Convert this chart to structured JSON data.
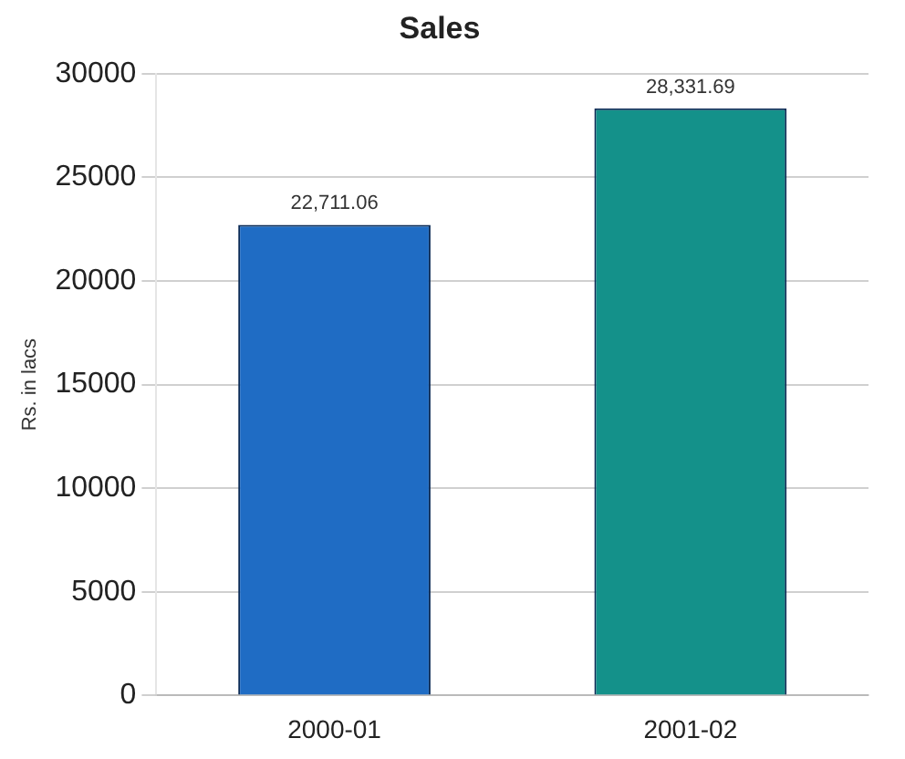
{
  "chart_data": {
    "type": "bar",
    "title": "Sales",
    "ylabel": "Rs. in lacs",
    "categories": [
      "2000-01",
      "2001-02"
    ],
    "values": [
      22711.06,
      28331.69
    ],
    "colors": [
      "#1f6cc4",
      "#14918a"
    ],
    "value_labels": [
      "22,711.06",
      "28,331.69"
    ],
    "ylim": [
      0,
      30000
    ],
    "yticks": [
      0,
      5000,
      10000,
      15000,
      20000,
      25000,
      30000
    ],
    "grid": "y",
    "legend": false
  }
}
